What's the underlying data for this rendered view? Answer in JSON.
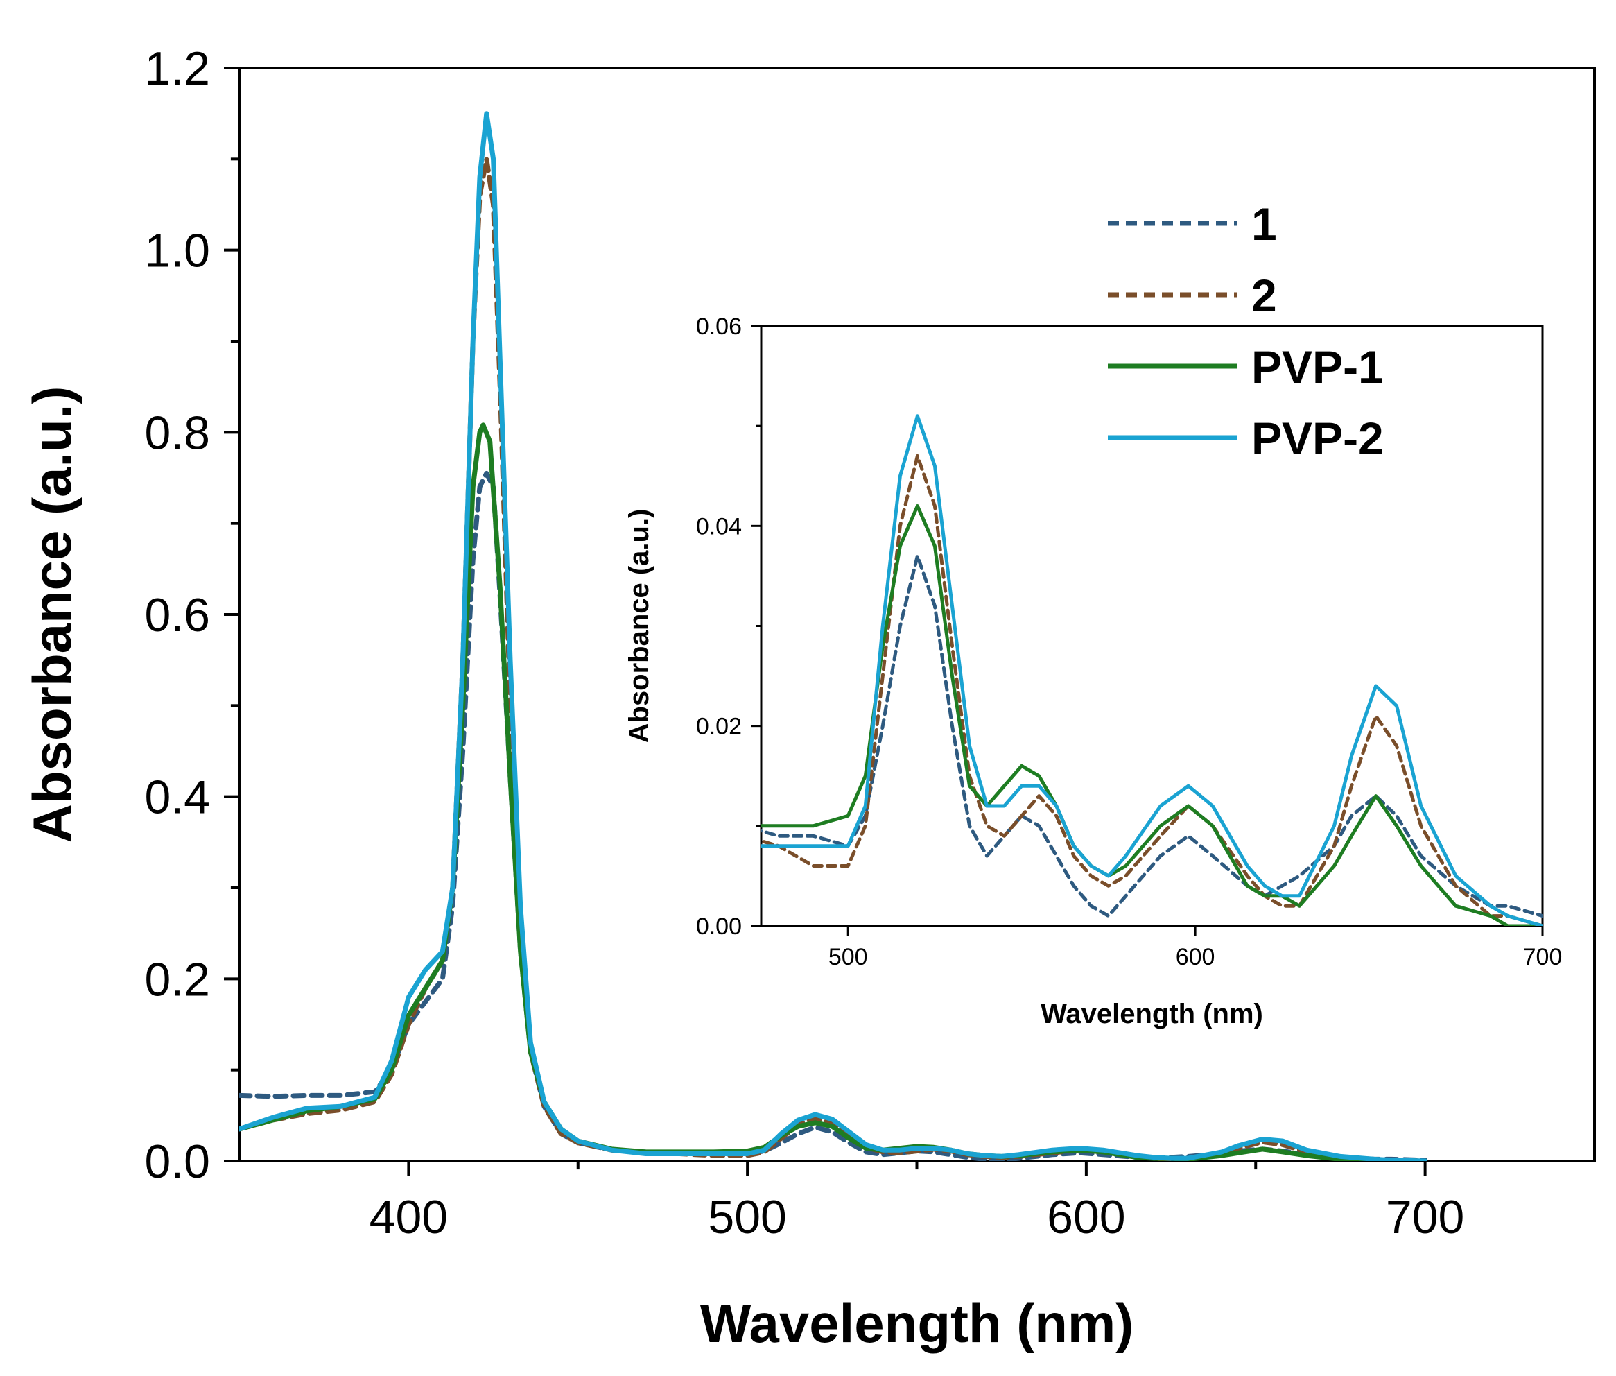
{
  "chart_data": [
    {
      "type": "line",
      "xlabel": "Wavelength (nm)",
      "ylabel": "Absorbance (a.u.)",
      "xlim": [
        350,
        750
      ],
      "ylim": [
        0,
        1.2
      ],
      "xticks": [
        "400",
        "500",
        "600",
        "700"
      ],
      "xtick_values": [
        400,
        500,
        600,
        700
      ],
      "yticks": [
        "0.0",
        "0.2",
        "0.4",
        "0.6",
        "0.8",
        "1.0",
        "1.2"
      ],
      "ytick_values": [
        0,
        0.2,
        0.4,
        0.6,
        0.8,
        1.0,
        1.2
      ],
      "legend_position": "top-right",
      "series": [
        {
          "name": "1",
          "color": "#2e5a80",
          "dash": "dashed",
          "points": [
            [
              350,
              0.072
            ],
            [
              360,
              0.071
            ],
            [
              370,
              0.072
            ],
            [
              380,
              0.072
            ],
            [
              390,
              0.076
            ],
            [
              395,
              0.1
            ],
            [
              400,
              0.15
            ],
            [
              405,
              0.175
            ],
            [
              410,
              0.2
            ],
            [
              413,
              0.28
            ],
            [
              416,
              0.45
            ],
            [
              419,
              0.66
            ],
            [
              421,
              0.74
            ],
            [
              423,
              0.755
            ],
            [
              425,
              0.74
            ],
            [
              427,
              0.62
            ],
            [
              430,
              0.42
            ],
            [
              433,
              0.23
            ],
            [
              436,
              0.12
            ],
            [
              440,
              0.06
            ],
            [
              445,
              0.03
            ],
            [
              450,
              0.02
            ],
            [
              460,
              0.012
            ],
            [
              470,
              0.01
            ],
            [
              480,
              0.009
            ],
            [
              490,
              0.009
            ],
            [
              500,
              0.008
            ],
            [
              505,
              0.011
            ],
            [
              510,
              0.02
            ],
            [
              515,
              0.03
            ],
            [
              520,
              0.037
            ],
            [
              525,
              0.032
            ],
            [
              530,
              0.02
            ],
            [
              535,
              0.01
            ],
            [
              540,
              0.007
            ],
            [
              545,
              0.009
            ],
            [
              550,
              0.011
            ],
            [
              555,
              0.01
            ],
            [
              560,
              0.007
            ],
            [
              565,
              0.004
            ],
            [
              570,
              0.002
            ],
            [
              575,
              0.001
            ],
            [
              580,
              0.003
            ],
            [
              590,
              0.007
            ],
            [
              598,
              0.009
            ],
            [
              605,
              0.007
            ],
            [
              615,
              0.004
            ],
            [
              620,
              0.003
            ],
            [
              625,
              0.004
            ],
            [
              630,
              0.005
            ],
            [
              640,
              0.008
            ],
            [
              645,
              0.011
            ],
            [
              652,
              0.013
            ],
            [
              658,
              0.011
            ],
            [
              665,
              0.007
            ],
            [
              675,
              0.004
            ],
            [
              685,
              0.002
            ],
            [
              690,
              0.002
            ],
            [
              700,
              0.001
            ]
          ]
        },
        {
          "name": "2",
          "color": "#7a4e2a",
          "dash": "dashed",
          "points": [
            [
              350,
              0.035
            ],
            [
              360,
              0.045
            ],
            [
              370,
              0.052
            ],
            [
              380,
              0.056
            ],
            [
              390,
              0.065
            ],
            [
              395,
              0.095
            ],
            [
              400,
              0.15
            ],
            [
              405,
              0.19
            ],
            [
              410,
              0.22
            ],
            [
              413,
              0.3
            ],
            [
              416,
              0.55
            ],
            [
              419,
              0.9
            ],
            [
              421,
              1.06
            ],
            [
              423,
              1.1
            ],
            [
              425,
              1.05
            ],
            [
              427,
              0.85
            ],
            [
              430,
              0.5
            ],
            [
              433,
              0.25
            ],
            [
              436,
              0.12
            ],
            [
              440,
              0.06
            ],
            [
              445,
              0.03
            ],
            [
              450,
              0.02
            ],
            [
              460,
              0.012
            ],
            [
              470,
              0.009
            ],
            [
              480,
              0.008
            ],
            [
              490,
              0.006
            ],
            [
              500,
              0.006
            ],
            [
              505,
              0.01
            ],
            [
              510,
              0.025
            ],
            [
              515,
              0.04
            ],
            [
              520,
              0.047
            ],
            [
              525,
              0.042
            ],
            [
              530,
              0.028
            ],
            [
              535,
              0.015
            ],
            [
              540,
              0.01
            ],
            [
              545,
              0.009
            ],
            [
              550,
              0.011
            ],
            [
              555,
              0.013
            ],
            [
              560,
              0.011
            ],
            [
              565,
              0.007
            ],
            [
              570,
              0.005
            ],
            [
              575,
              0.004
            ],
            [
              580,
              0.005
            ],
            [
              590,
              0.009
            ],
            [
              598,
              0.012
            ],
            [
              605,
              0.01
            ],
            [
              615,
              0.005
            ],
            [
              620,
              0.003
            ],
            [
              625,
              0.002
            ],
            [
              630,
              0.002
            ],
            [
              640,
              0.008
            ],
            [
              645,
              0.014
            ],
            [
              652,
              0.021
            ],
            [
              658,
              0.018
            ],
            [
              665,
              0.01
            ],
            [
              675,
              0.004
            ],
            [
              685,
              0.001
            ],
            [
              690,
              0.001
            ],
            [
              700,
              0.0
            ]
          ]
        },
        {
          "name": "PVP-1",
          "color": "#1e7d22",
          "dash": "solid",
          "points": [
            [
              350,
              0.035
            ],
            [
              360,
              0.045
            ],
            [
              370,
              0.055
            ],
            [
              380,
              0.06
            ],
            [
              390,
              0.068
            ],
            [
              395,
              0.1
            ],
            [
              400,
              0.16
            ],
            [
              405,
              0.19
            ],
            [
              410,
              0.22
            ],
            [
              413,
              0.3
            ],
            [
              416,
              0.5
            ],
            [
              419,
              0.74
            ],
            [
              421,
              0.8
            ],
            [
              422,
              0.808
            ],
            [
              424,
              0.79
            ],
            [
              427,
              0.63
            ],
            [
              430,
              0.42
            ],
            [
              433,
              0.23
            ],
            [
              436,
              0.12
            ],
            [
              440,
              0.065
            ],
            [
              445,
              0.035
            ],
            [
              450,
              0.022
            ],
            [
              460,
              0.013
            ],
            [
              470,
              0.01
            ],
            [
              480,
              0.01
            ],
            [
              490,
              0.01
            ],
            [
              500,
              0.011
            ],
            [
              505,
              0.015
            ],
            [
              510,
              0.028
            ],
            [
              515,
              0.038
            ],
            [
              520,
              0.042
            ],
            [
              525,
              0.038
            ],
            [
              530,
              0.025
            ],
            [
              535,
              0.014
            ],
            [
              540,
              0.012
            ],
            [
              545,
              0.014
            ],
            [
              550,
              0.016
            ],
            [
              555,
              0.015
            ],
            [
              560,
              0.012
            ],
            [
              565,
              0.008
            ],
            [
              570,
              0.006
            ],
            [
              575,
              0.005
            ],
            [
              580,
              0.006
            ],
            [
              590,
              0.01
            ],
            [
              598,
              0.012
            ],
            [
              605,
              0.01
            ],
            [
              615,
              0.004
            ],
            [
              620,
              0.003
            ],
            [
              625,
              0.003
            ],
            [
              630,
              0.002
            ],
            [
              640,
              0.006
            ],
            [
              645,
              0.009
            ],
            [
              652,
              0.013
            ],
            [
              658,
              0.01
            ],
            [
              665,
              0.006
            ],
            [
              675,
              0.002
            ],
            [
              685,
              0.001
            ],
            [
              690,
              0.0
            ],
            [
              700,
              0.0
            ]
          ]
        },
        {
          "name": "PVP-2",
          "color": "#1aa3d2",
          "dash": "solid",
          "points": [
            [
              350,
              0.035
            ],
            [
              360,
              0.048
            ],
            [
              370,
              0.058
            ],
            [
              380,
              0.06
            ],
            [
              390,
              0.07
            ],
            [
              395,
              0.11
            ],
            [
              400,
              0.18
            ],
            [
              405,
              0.21
            ],
            [
              410,
              0.23
            ],
            [
              413,
              0.3
            ],
            [
              416,
              0.55
            ],
            [
              419,
              0.9
            ],
            [
              421,
              1.08
            ],
            [
              423,
              1.15
            ],
            [
              425,
              1.1
            ],
            [
              427,
              0.88
            ],
            [
              430,
              0.55
            ],
            [
              433,
              0.28
            ],
            [
              436,
              0.13
            ],
            [
              440,
              0.065
            ],
            [
              445,
              0.035
            ],
            [
              450,
              0.022
            ],
            [
              460,
              0.012
            ],
            [
              470,
              0.008
            ],
            [
              480,
              0.008
            ],
            [
              490,
              0.008
            ],
            [
              500,
              0.008
            ],
            [
              505,
              0.012
            ],
            [
              510,
              0.03
            ],
            [
              515,
              0.045
            ],
            [
              520,
              0.051
            ],
            [
              525,
              0.046
            ],
            [
              530,
              0.032
            ],
            [
              535,
              0.018
            ],
            [
              540,
              0.012
            ],
            [
              545,
              0.012
            ],
            [
              550,
              0.014
            ],
            [
              555,
              0.014
            ],
            [
              560,
              0.012
            ],
            [
              565,
              0.008
            ],
            [
              570,
              0.006
            ],
            [
              575,
              0.005
            ],
            [
              580,
              0.007
            ],
            [
              590,
              0.012
            ],
            [
              598,
              0.014
            ],
            [
              605,
              0.012
            ],
            [
              615,
              0.006
            ],
            [
              620,
              0.004
            ],
            [
              625,
              0.003
            ],
            [
              630,
              0.003
            ],
            [
              640,
              0.01
            ],
            [
              645,
              0.017
            ],
            [
              652,
              0.024
            ],
            [
              658,
              0.022
            ],
            [
              665,
              0.012
            ],
            [
              675,
              0.005
            ],
            [
              685,
              0.002
            ],
            [
              690,
              0.001
            ],
            [
              700,
              0.0
            ]
          ]
        }
      ]
    },
    {
      "type": "line",
      "xlabel": "Wavelength (nm)",
      "ylabel": "Absorbance (a.u.)",
      "xlim": [
        475,
        700
      ],
      "ylim": [
        0,
        0.06
      ],
      "xticks": [
        "500",
        "600",
        "700"
      ],
      "xtick_values": [
        500,
        600,
        700
      ],
      "yticks": [
        "0.00",
        "0.02",
        "0.04",
        "0.06"
      ],
      "ytick_values": [
        0,
        0.02,
        0.04,
        0.06
      ],
      "series_ref": "same as main chart series"
    }
  ]
}
